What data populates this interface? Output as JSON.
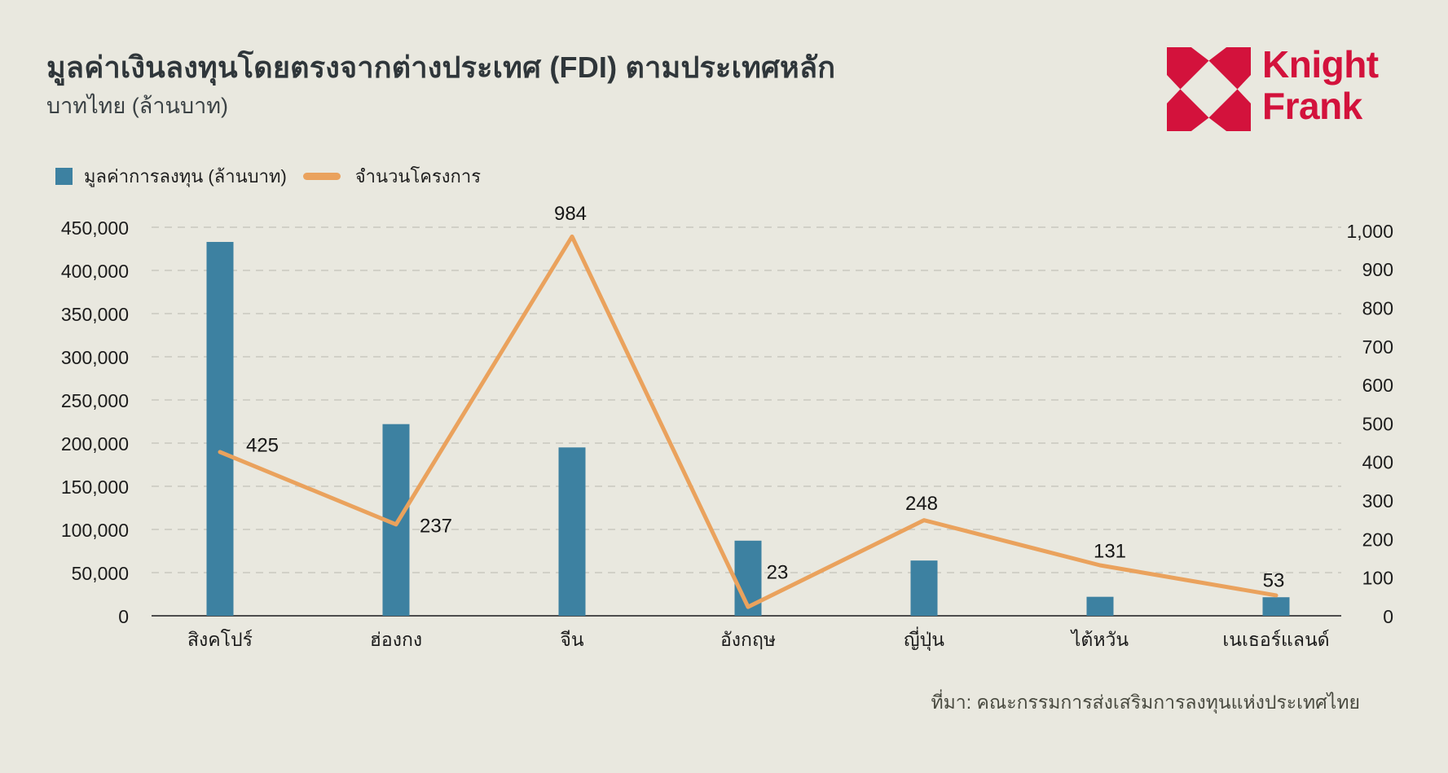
{
  "page": {
    "background": "#e9e8df"
  },
  "header": {
    "title": "มูลค่าเงินลงทุนโดยตรงจากต่างประเทศ (FDI) ตามประเทศหลัก",
    "subtitle": "บาทไทย (ล้านบาท)"
  },
  "logo": {
    "brand_line1": "Knight",
    "brand_line2": "Frank",
    "color": "#d3123c"
  },
  "legend": [
    {
      "label": "มูลค่าการลงทุน (ล้านบาท)",
      "swatch": "square",
      "color": "#3d81a1"
    },
    {
      "label": "จำนวนโครงการ",
      "swatch": "line",
      "color": "#eaa25d"
    }
  ],
  "chart_data": {
    "type": "bar",
    "subtype": "combo bar + line, dual axis",
    "title": "มูลค่าเงินลงทุนโดยตรงจากต่างประเทศ (FDI) ตามประเทศหลัก",
    "subtitle": "บาทไทย (ล้านบาท)",
    "categories": [
      "สิงคโปร์",
      "ฮ่องกง",
      "จีน",
      "อังกฤษ",
      "ญี่ปุ่น",
      "ไต้หวัน",
      "เนเธอร์แลนด์"
    ],
    "series": [
      {
        "name": "มูลค่าการลงทุน (ล้านบาท)",
        "type": "bar",
        "axis": "left",
        "color": "#3d81a1",
        "values": [
          433000,
          222000,
          195000,
          87000,
          64000,
          22000,
          21500
        ]
      },
      {
        "name": "จำนวนโครงการ",
        "type": "line",
        "axis": "right",
        "color": "#eaa25d",
        "values": [
          425,
          237,
          984,
          23,
          248,
          131,
          53
        ],
        "data_labels": [
          "425",
          "237",
          "984",
          "23",
          "248",
          "131",
          "53"
        ]
      }
    ],
    "left_axis": {
      "min": 0,
      "max": 450000,
      "step": 50000,
      "tick_labels": [
        "0",
        "50,000",
        "100,000",
        "150,000",
        "200,000",
        "250,000",
        "300,000",
        "350,000",
        "400,000",
        "450,000"
      ]
    },
    "right_axis": {
      "min": 0,
      "max": 1000,
      "step": 100,
      "tick_labels": [
        "0",
        "100",
        "200",
        "300",
        "400",
        "500",
        "600",
        "700",
        "800",
        "900",
        "1,000"
      ]
    },
    "grid": "horizontal dashed",
    "legend_position": "top-left",
    "colors": {
      "grid": "#c9c8bf",
      "baseline": "#4c4c4c",
      "tick_text": "#1c1c1c"
    }
  },
  "source": {
    "text": "ที่มา: คณะกรรมการส่งเสริมการลงทุนแห่งประเทศไทย"
  }
}
